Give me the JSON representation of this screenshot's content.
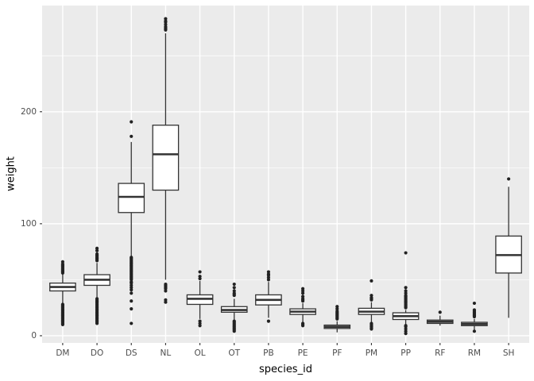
{
  "chart_data": {
    "type": "boxplot",
    "title": "",
    "xlabel": "species_id",
    "ylabel": "weight",
    "yticks": [
      0,
      100,
      200
    ],
    "yticks_minor": [
      50,
      150,
      250
    ],
    "ylim": [
      -6.4,
      294.8
    ],
    "grid": "on",
    "panel_bg": "#EBEBEB",
    "grid_color": "#FFFFFF",
    "box_color": "#333333",
    "box_fill": "#FFFFFF",
    "point_color": "#222222",
    "tick_text_color": "#4d4d4d",
    "categories": [
      "DM",
      "DO",
      "DS",
      "NL",
      "OL",
      "OT",
      "PB",
      "PE",
      "PF",
      "PM",
      "PP",
      "RF",
      "RM",
      "SH"
    ],
    "series": [
      {
        "species": "DM",
        "whisker_low": 29,
        "q1": 40,
        "median": 43.5,
        "q3": 47,
        "whisker_high": 55,
        "outliers": [
          10,
          11,
          12,
          13,
          14,
          15,
          16,
          17,
          18,
          19,
          20,
          21,
          22,
          23,
          24,
          25,
          26,
          27,
          28,
          56,
          57,
          58,
          59,
          60,
          61,
          62,
          63,
          64,
          66
        ]
      },
      {
        "species": "DO",
        "whisker_low": 34,
        "q1": 45,
        "median": 50,
        "q3": 54.5,
        "whisker_high": 65,
        "outliers": [
          11,
          12,
          13,
          14,
          15,
          16,
          17,
          18,
          19,
          20,
          21,
          22,
          23,
          24,
          25,
          26,
          27,
          28,
          29,
          30,
          31,
          32,
          33,
          67,
          68,
          69,
          70,
          71,
          72,
          73,
          76,
          78
        ]
      },
      {
        "species": "DS",
        "whisker_low": 71,
        "q1": 110,
        "median": 124,
        "q3": 136,
        "whisker_high": 173,
        "outliers": [
          11,
          24,
          31,
          38,
          41,
          43,
          45,
          47,
          48,
          50,
          51,
          52,
          53,
          54,
          55,
          56,
          57,
          58,
          59,
          60,
          61,
          62,
          63,
          64,
          65,
          66,
          67,
          68,
          69,
          70,
          178,
          191
        ]
      },
      {
        "species": "NL",
        "whisker_low": 50,
        "q1": 130,
        "median": 162,
        "q3": 188,
        "whisker_high": 270,
        "outliers": [
          30,
          32,
          40,
          42,
          43,
          44,
          45,
          46,
          273,
          274,
          275,
          276,
          278,
          280,
          281,
          283
        ]
      },
      {
        "species": "OL",
        "whisker_low": 15,
        "q1": 28,
        "median": 33,
        "q3": 36.5,
        "whisker_high": 49,
        "outliers": [
          9,
          11,
          13,
          51,
          53,
          57
        ]
      },
      {
        "species": "OT",
        "whisker_low": 14,
        "q1": 21,
        "median": 23,
        "q3": 26,
        "whisker_high": 33,
        "outliers": [
          4,
          5,
          6,
          7,
          8,
          9,
          10,
          11,
          12,
          13,
          36,
          37,
          38,
          40,
          43,
          46
        ]
      },
      {
        "species": "PB",
        "whisker_low": 16,
        "q1": 27.5,
        "median": 32,
        "q3": 36.5,
        "whisker_high": 48,
        "outliers": [
          13,
          50,
          52,
          54,
          55,
          57
        ]
      },
      {
        "species": "PE",
        "whisker_low": 12,
        "q1": 19,
        "median": 21.5,
        "q3": 24,
        "whisker_high": 29,
        "outliers": [
          9,
          10,
          11,
          31,
          32,
          33,
          35,
          38,
          40,
          42
        ]
      },
      {
        "species": "PF",
        "whisker_low": 3,
        "q1": 6.5,
        "median": 8,
        "q3": 9.5,
        "whisker_high": 13,
        "outliers": [
          15,
          16,
          17,
          18,
          19,
          20,
          21,
          22,
          24,
          26
        ]
      },
      {
        "species": "PM",
        "whisker_low": 12,
        "q1": 19,
        "median": 21.5,
        "q3": 24.5,
        "whisker_high": 30,
        "outliers": [
          6,
          7,
          8,
          9,
          10,
          11,
          32,
          33,
          34,
          36,
          49
        ]
      },
      {
        "species": "PP",
        "whisker_low": 10,
        "q1": 14.5,
        "median": 17.5,
        "q3": 20.5,
        "whisker_high": 23,
        "outliers": [
          2,
          4,
          6,
          8,
          9,
          25,
          26,
          27,
          28,
          29,
          30,
          31,
          32,
          33,
          34,
          35,
          36,
          38,
          40,
          43,
          74
        ]
      },
      {
        "species": "RF",
        "whisker_low": 9,
        "q1": 11,
        "median": 12.5,
        "q3": 14,
        "whisker_high": 18,
        "outliers": [
          21
        ]
      },
      {
        "species": "RM",
        "whisker_low": 5,
        "q1": 9,
        "median": 10.5,
        "q3": 12,
        "whisker_high": 15,
        "outliers": [
          4,
          17,
          18,
          19,
          20,
          21,
          22,
          23,
          29
        ]
      },
      {
        "species": "SH",
        "whisker_low": 16,
        "q1": 56,
        "median": 72,
        "q3": 89,
        "whisker_high": 133,
        "outliers": [
          140
        ]
      }
    ]
  }
}
